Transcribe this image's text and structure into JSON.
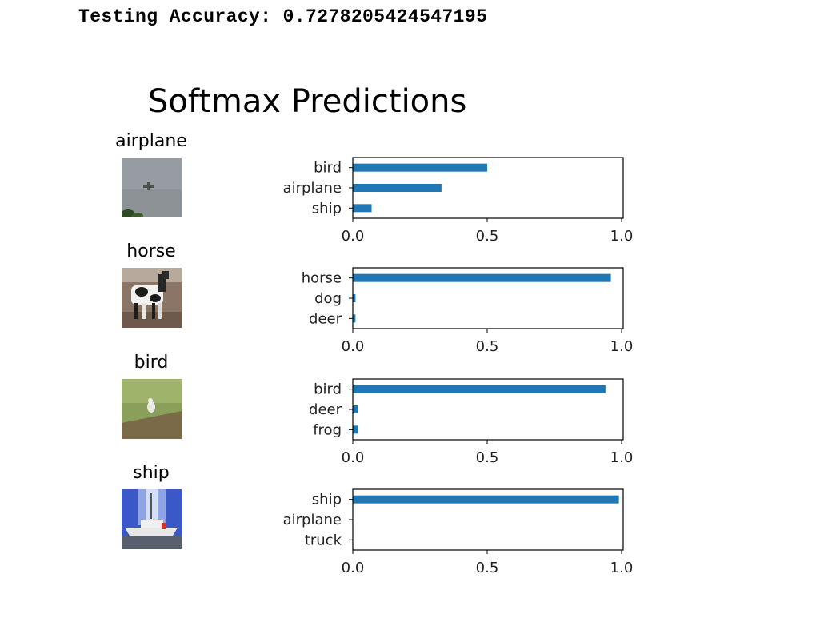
{
  "output": {
    "accuracy_line": "Testing Accuracy: 0.7278205424547195"
  },
  "figure": {
    "title": "Softmax Predictions"
  },
  "samples": [
    {
      "label": "airplane",
      "thumbnail": "airplane-photo"
    },
    {
      "label": "horse",
      "thumbnail": "horse-photo"
    },
    {
      "label": "bird",
      "thumbnail": "bird-photo"
    },
    {
      "label": "ship",
      "thumbnail": "ship-photo"
    }
  ],
  "colors": {
    "bar": "#1f77b4"
  },
  "chart_data": [
    {
      "type": "bar",
      "orientation": "horizontal",
      "categories": [
        "bird",
        "airplane",
        "ship"
      ],
      "values": [
        0.5,
        0.33,
        0.07
      ],
      "xlim": [
        0,
        1.0
      ],
      "xticks": [
        "0.0",
        "0.5",
        "1.0"
      ]
    },
    {
      "type": "bar",
      "orientation": "horizontal",
      "categories": [
        "horse",
        "dog",
        "deer"
      ],
      "values": [
        0.96,
        0.01,
        0.01
      ],
      "xlim": [
        0,
        1.0
      ],
      "xticks": [
        "0.0",
        "0.5",
        "1.0"
      ]
    },
    {
      "type": "bar",
      "orientation": "horizontal",
      "categories": [
        "bird",
        "deer",
        "frog"
      ],
      "values": [
        0.94,
        0.02,
        0.02
      ],
      "xlim": [
        0,
        1.0
      ],
      "xticks": [
        "0.0",
        "0.5",
        "1.0"
      ]
    },
    {
      "type": "bar",
      "orientation": "horizontal",
      "categories": [
        "ship",
        "airplane",
        "truck"
      ],
      "values": [
        0.99,
        0.0,
        0.0
      ],
      "xlim": [
        0,
        1.0
      ],
      "xticks": [
        "0.0",
        "0.5",
        "1.0"
      ]
    }
  ]
}
